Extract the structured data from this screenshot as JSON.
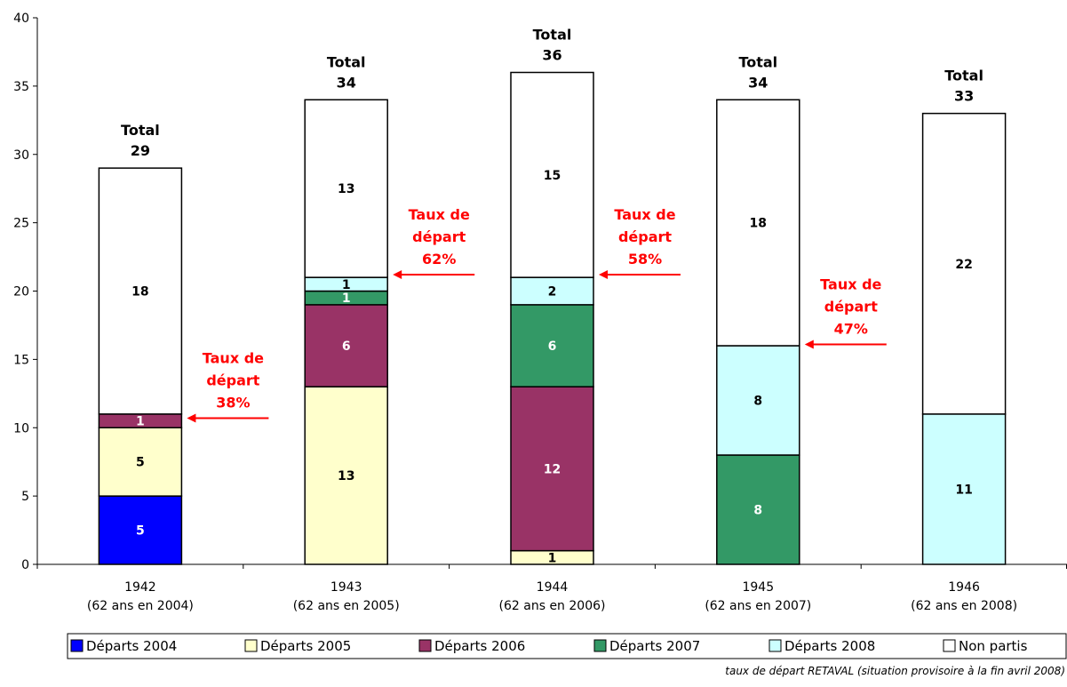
{
  "chart_data": {
    "type": "bar",
    "stacked": true,
    "categories": [
      [
        "1942",
        "(62 ans en 2004)"
      ],
      [
        "1943",
        "(62 ans en 2005)"
      ],
      [
        "1944",
        "(62 ans en 2006)"
      ],
      [
        "1945",
        "(62 ans en 2007)"
      ],
      [
        "1946",
        "(62 ans en 2008)"
      ]
    ],
    "series": [
      {
        "name": "Départs 2004",
        "color": "#0000FF",
        "label_color": "#FFFFFF",
        "values": [
          5,
          0,
          0,
          0,
          0
        ]
      },
      {
        "name": "Départs 2005",
        "color": "#FFFFCC",
        "label_color": "#000000",
        "values": [
          5,
          13,
          1,
          0,
          0
        ]
      },
      {
        "name": "Départs 2006",
        "color": "#993366",
        "label_color": "#FFFFFF",
        "values": [
          1,
          6,
          12,
          0,
          0
        ]
      },
      {
        "name": "Départs 2007",
        "color": "#339966",
        "label_color": "#FFFFFF",
        "values": [
          0,
          1,
          6,
          8,
          0
        ]
      },
      {
        "name": "Départs 2008",
        "color": "#CCFFFF",
        "label_color": "#000000",
        "values": [
          0,
          1,
          2,
          8,
          11
        ]
      },
      {
        "name": "Non partis",
        "color": "#FFFFFF",
        "label_color": "#000000",
        "values": [
          18,
          13,
          15,
          18,
          22
        ]
      }
    ],
    "totals": {
      "label": "Total",
      "values": [
        29,
        34,
        36,
        34,
        33
      ]
    },
    "rate_annotations": [
      {
        "category_index": 0,
        "lines": [
          "Taux de",
          "départ",
          "38%"
        ],
        "arrow_y": 10.7
      },
      {
        "category_index": 1,
        "lines": [
          "Taux de",
          "départ",
          "62%"
        ],
        "arrow_y": 21.2
      },
      {
        "category_index": 2,
        "lines": [
          "Taux de",
          "départ",
          "58%"
        ],
        "arrow_y": 21.2
      },
      {
        "category_index": 3,
        "lines": [
          "Taux de",
          "départ",
          "47%"
        ],
        "arrow_y": 16.1
      }
    ],
    "annotation_color": "#FF0000",
    "ylim": [
      0,
      40
    ],
    "yticks": [
      0,
      5,
      10,
      15,
      20,
      25,
      30,
      35,
      40
    ],
    "grid": false,
    "legend_position": "bottom",
    "title": "",
    "xlabel": "",
    "ylabel": ""
  },
  "footnote": "taux de départ RETAVAL (situation provisoire à la fin avril 2008)"
}
